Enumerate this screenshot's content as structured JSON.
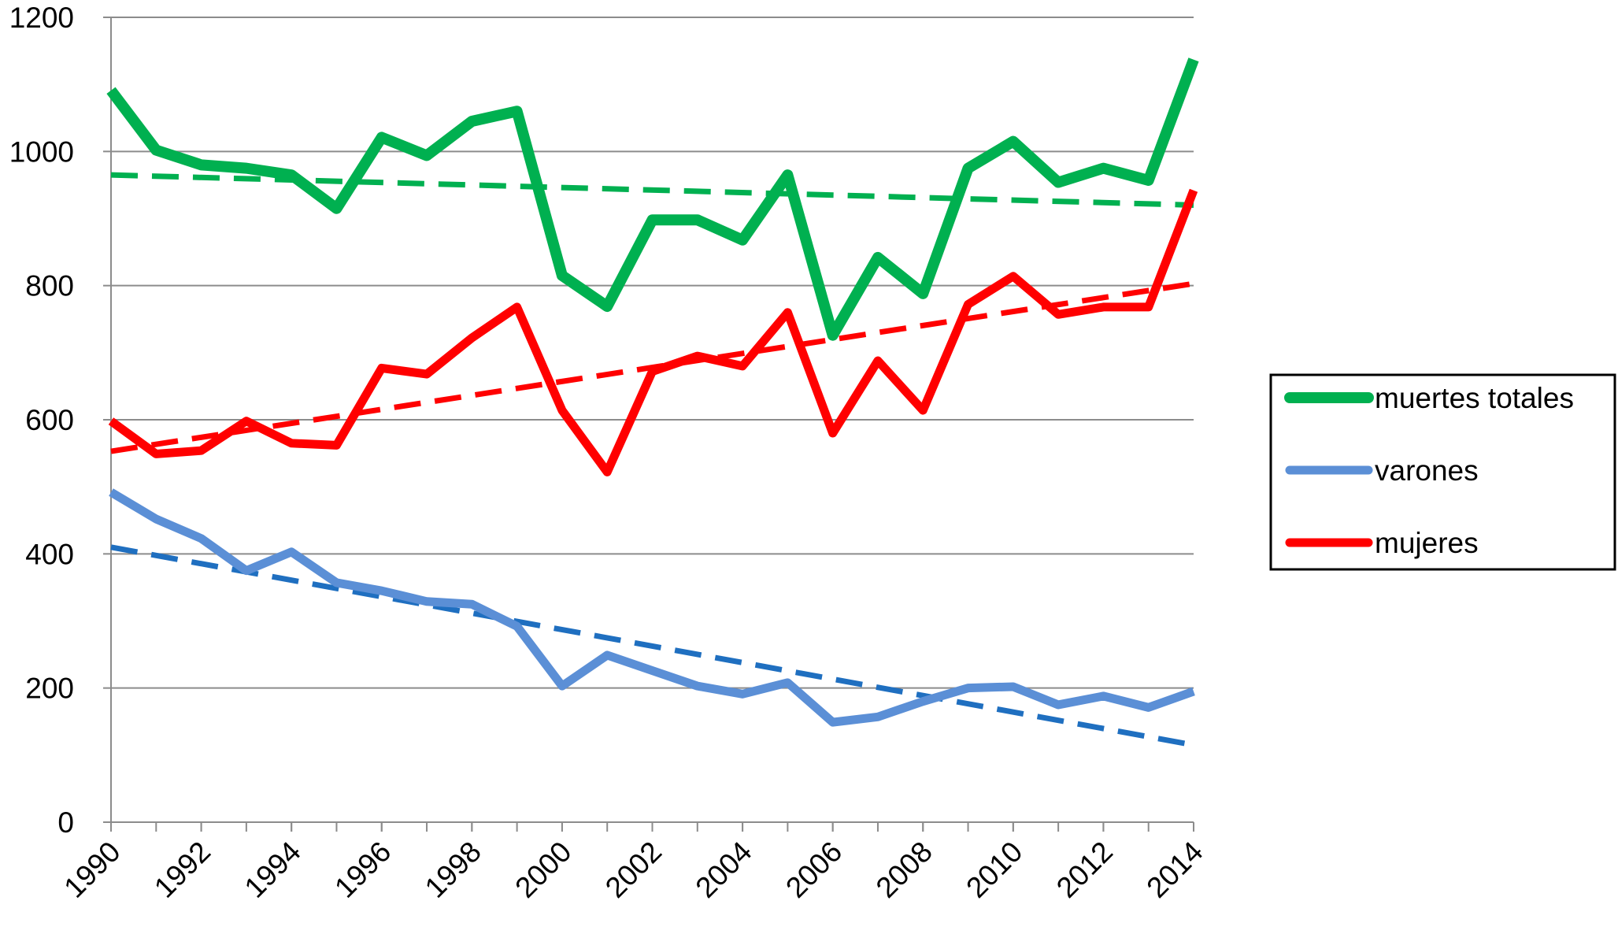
{
  "chart_data": {
    "type": "line",
    "x": [
      1990,
      1991,
      1992,
      1993,
      1994,
      1995,
      1996,
      1997,
      1998,
      1999,
      2000,
      2001,
      2002,
      2003,
      2004,
      2005,
      2006,
      2007,
      2008,
      2009,
      2010,
      2011,
      2012,
      2013,
      2014
    ],
    "xlim": [
      1990,
      2014
    ],
    "xticks": [
      1990,
      1992,
      1994,
      1996,
      1998,
      2000,
      2002,
      2004,
      2006,
      2008,
      2010,
      2012,
      2014
    ],
    "ylim": [
      0,
      1200
    ],
    "yticks": [
      0,
      200,
      400,
      600,
      800,
      1000,
      1200
    ],
    "grid": true,
    "legend": "right",
    "series": [
      {
        "name": "muertes totales",
        "color": "#00b050",
        "values": [
          1091,
          1002,
          980,
          975,
          965,
          915,
          1021,
          994,
          1045,
          1060,
          815,
          769,
          898,
          898,
          868,
          965,
          726,
          842,
          788,
          975,
          1015,
          954,
          975,
          957,
          1137
        ],
        "trend": {
          "values": [
            965,
            920
          ],
          "color": "#00b050"
        }
      },
      {
        "name": "varones",
        "color": "#5b8fd6",
        "values": [
          492,
          452,
          423,
          375,
          403,
          357,
          345,
          329,
          325,
          292,
          203,
          249,
          226,
          203,
          191,
          208,
          149,
          157,
          180,
          200,
          202,
          175,
          188,
          171,
          195
        ],
        "trend": {
          "values": [
            410,
            115
          ],
          "color": "#1f6fc0"
        }
      },
      {
        "name": "mujeres",
        "color": "#ff0000",
        "values": [
          598,
          549,
          554,
          598,
          565,
          562,
          677,
          668,
          722,
          768,
          614,
          522,
          672,
          695,
          680,
          760,
          580,
          688,
          614,
          772,
          814,
          757,
          768,
          768,
          942
        ],
        "trend": {
          "values": [
            553,
            803
          ],
          "color": "#ff0000"
        }
      }
    ]
  }
}
